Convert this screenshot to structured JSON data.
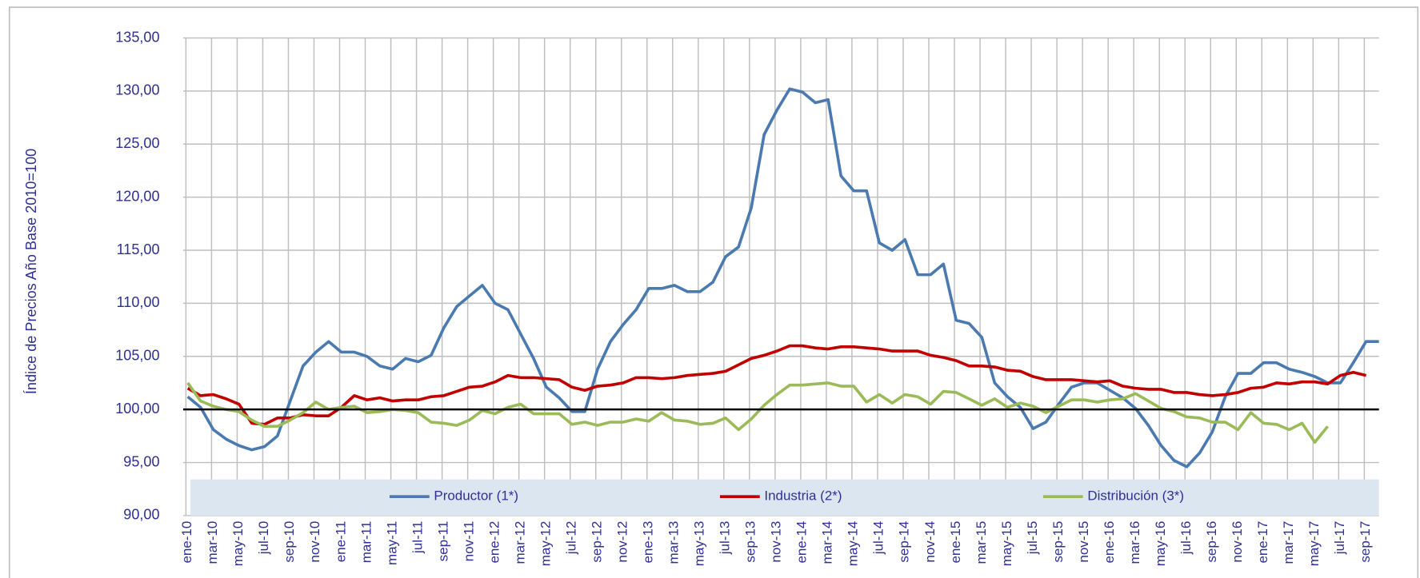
{
  "chart_data": {
    "type": "line",
    "y_label": "Índice de Precios Año Base 2010=100",
    "categories": [
      "ene-10",
      null,
      "mar-10",
      null,
      "may-10",
      null,
      "jul-10",
      null,
      "sep-10",
      null,
      "nov-10",
      null,
      "ene-11",
      null,
      "mar-11",
      null,
      "may-11",
      null,
      "jul-11",
      null,
      "sep-11",
      null,
      "nov-11",
      null,
      "ene-12",
      null,
      "mar-12",
      null,
      "may-12",
      null,
      "jul-12",
      null,
      "sep-12",
      null,
      "nov-12",
      null,
      "ene-13",
      null,
      "mar-13",
      null,
      "may-13",
      null,
      "jul-13",
      null,
      "sep-13",
      null,
      "nov-13",
      null,
      "ene-14",
      null,
      "mar-14",
      null,
      "may-14",
      null,
      "jul-14",
      null,
      "sep-14",
      null,
      "nov-14",
      null,
      "ene-15",
      null,
      "mar-15",
      null,
      "may-15",
      null,
      "jul-15",
      null,
      "sep-15",
      null,
      "nov-15",
      null,
      "ene-16",
      null,
      "mar-16",
      null,
      "may-16",
      null,
      "jul-16",
      null,
      "sep-16",
      null,
      "nov-16",
      null,
      "ene-17",
      null,
      "mar-17",
      null,
      "may-17",
      null,
      "jul-17",
      null,
      "sep-17",
      null
    ],
    "series": [
      {
        "name": "Productor (1*)",
        "color": "#4a7ab0",
        "values": [
          101.2,
          100.2,
          98.1,
          97.2,
          96.6,
          96.2,
          96.5,
          97.5,
          100.8,
          104.1,
          105.4,
          106.4,
          105.4,
          105.4,
          105.0,
          104.1,
          103.8,
          104.8,
          104.5,
          105.1,
          107.7,
          109.7,
          110.7,
          111.7,
          110.0,
          109.4,
          107.1,
          104.8,
          102.1,
          101.1,
          99.8,
          99.8,
          103.8,
          106.4,
          108.0,
          109.4,
          111.4,
          111.4,
          111.7,
          111.1,
          111.1,
          112.0,
          114.4,
          115.3,
          119.0,
          125.9,
          128.2,
          130.2,
          129.9,
          128.9,
          129.2,
          122.0,
          120.6,
          120.6,
          115.7,
          115.0,
          116.0,
          112.7,
          112.7,
          113.7,
          108.4,
          108.1,
          106.8,
          102.5,
          101.2,
          100.2,
          98.2,
          98.8,
          100.5,
          102.1,
          102.5,
          102.5,
          101.8,
          101.1,
          100.1,
          98.5,
          96.6,
          95.2,
          94.6,
          95.9,
          97.9,
          101.2,
          103.4,
          103.4,
          104.4,
          104.4,
          103.8,
          103.5,
          103.1,
          102.5,
          102.5,
          104.4,
          106.4,
          106.4
        ]
      },
      {
        "name": "Industria (2*)",
        "color": "#c00000",
        "values": [
          102.0,
          101.3,
          101.4,
          101.0,
          100.5,
          98.7,
          98.6,
          99.2,
          99.2,
          99.5,
          99.4,
          99.4,
          100.2,
          101.3,
          100.9,
          101.1,
          100.8,
          100.9,
          100.9,
          101.2,
          101.3,
          101.7,
          102.1,
          102.2,
          102.6,
          103.2,
          103.0,
          103.0,
          102.9,
          102.8,
          102.1,
          101.8,
          102.2,
          102.3,
          102.5,
          103.0,
          103.0,
          102.9,
          103.0,
          103.2,
          103.3,
          103.4,
          103.6,
          104.2,
          104.8,
          105.1,
          105.5,
          106.0,
          106.0,
          105.8,
          105.7,
          105.9,
          105.9,
          105.8,
          105.7,
          105.5,
          105.5,
          105.5,
          105.1,
          104.9,
          104.6,
          104.1,
          104.1,
          104.0,
          103.7,
          103.6,
          103.1,
          102.8,
          102.8,
          102.8,
          102.7,
          102.6,
          102.7,
          102.2,
          102.0,
          101.9,
          101.9,
          101.6,
          101.6,
          101.4,
          101.3,
          101.4,
          101.6,
          102.0,
          102.1,
          102.5,
          102.4,
          102.6,
          102.6,
          102.4,
          103.2,
          103.5,
          103.2,
          null
        ]
      },
      {
        "name": "Distribución (3*)",
        "color": "#9bbb59",
        "values": [
          102.5,
          100.8,
          100.3,
          100.0,
          99.8,
          99.0,
          98.4,
          98.4,
          99.0,
          99.7,
          100.7,
          100.0,
          100.2,
          100.3,
          99.7,
          99.8,
          100.0,
          99.9,
          99.7,
          98.8,
          98.7,
          98.5,
          99.0,
          99.9,
          99.6,
          100.2,
          100.5,
          99.6,
          99.6,
          99.6,
          98.6,
          98.8,
          98.5,
          98.8,
          98.8,
          99.1,
          98.9,
          99.7,
          99.0,
          98.9,
          98.6,
          98.7,
          99.2,
          98.1,
          99.1,
          100.4,
          101.4,
          102.3,
          102.3,
          102.4,
          102.5,
          102.2,
          102.2,
          100.7,
          101.4,
          100.6,
          101.4,
          101.2,
          100.5,
          101.7,
          101.6,
          101.0,
          100.4,
          101.0,
          100.2,
          100.6,
          100.3,
          99.7,
          100.3,
          100.9,
          100.9,
          100.7,
          100.9,
          101.0,
          101.5,
          100.8,
          100.1,
          99.8,
          99.3,
          99.2,
          98.8,
          98.8,
          98.1,
          99.7,
          98.7,
          98.6,
          98.1,
          98.7,
          96.9,
          98.4,
          null,
          null,
          null,
          null
        ]
      }
    ],
    "ylim": [
      90,
      135
    ],
    "yticks": [
      {
        "value": 90,
        "label": "90,00"
      },
      {
        "value": 95,
        "label": "95,00"
      },
      {
        "value": 100,
        "label": "100,00"
      },
      {
        "value": 105,
        "label": "105,00"
      },
      {
        "value": 110,
        "label": "110,00"
      },
      {
        "value": 115,
        "label": "115,00"
      },
      {
        "value": 120,
        "label": "120,00"
      },
      {
        "value": 125,
        "label": "125,00"
      },
      {
        "value": 130,
        "label": "130,00"
      },
      {
        "value": 135,
        "label": "135,00"
      }
    ],
    "reference_line": 100,
    "grid": true,
    "legend": "bottom"
  }
}
